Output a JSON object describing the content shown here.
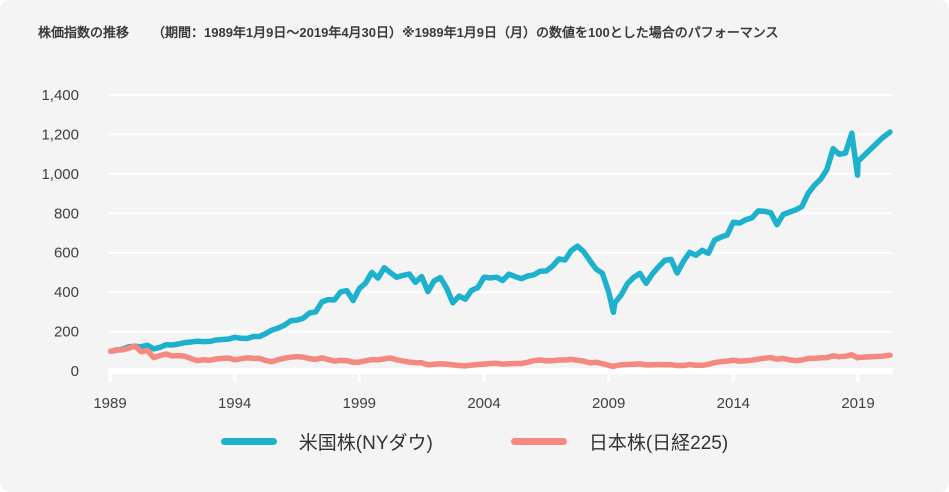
{
  "title": {
    "main": "株価指数の推移",
    "sub": "（期間：1989年1月9日～2019年4月30日）※1989年1月9日（月）の数値を100とした場合のパフォーマンス"
  },
  "colors": {
    "background": "#f5f4f4",
    "grid": "#ffffff",
    "axis_text": "#404040",
    "title_text": "#3a3a3a",
    "us_line": "#1db1cd",
    "jp_line": "#f5897f"
  },
  "chart_data": {
    "type": "line",
    "title": "株価指数の推移",
    "xlabel": "",
    "ylabel": "",
    "xlim": [
      1989,
      2019.33
    ],
    "ylim": [
      0,
      1400
    ],
    "grid": "horizontal",
    "legend_position": "bottom",
    "x_ticks": [
      1989,
      1994,
      1999,
      2004,
      2009,
      2014,
      2019
    ],
    "x_tick_labels": [
      "1989",
      "1994",
      "1999",
      "2004",
      "2009",
      "2014",
      "2019"
    ],
    "y_ticks": [
      0,
      200,
      400,
      600,
      800,
      1000,
      1200,
      1400
    ],
    "y_tick_labels": [
      "0",
      "200",
      "400",
      "600",
      "800",
      "1,000",
      "1,200",
      "1,400"
    ],
    "base_note": "1989-01-09 = 100",
    "series": [
      {
        "name": "米国株(NYダウ)",
        "color": "#1db1cd",
        "points": [
          [
            1989.03,
            100
          ],
          [
            1989.25,
            105
          ],
          [
            1989.5,
            111
          ],
          [
            1989.75,
            123
          ],
          [
            1990,
            125
          ],
          [
            1990.25,
            123
          ],
          [
            1990.5,
            131
          ],
          [
            1990.75,
            112
          ],
          [
            1991,
            120
          ],
          [
            1991.25,
            133
          ],
          [
            1991.5,
            132
          ],
          [
            1991.75,
            137
          ],
          [
            1992,
            144
          ],
          [
            1992.25,
            147
          ],
          [
            1992.5,
            151
          ],
          [
            1992.75,
            149
          ],
          [
            1993,
            150
          ],
          [
            1993.25,
            157
          ],
          [
            1993.5,
            160
          ],
          [
            1993.75,
            162
          ],
          [
            1994,
            171
          ],
          [
            1994.25,
            166
          ],
          [
            1994.5,
            165
          ],
          [
            1994.75,
            175
          ],
          [
            1995,
            175
          ],
          [
            1995.25,
            190
          ],
          [
            1995.5,
            208
          ],
          [
            1995.75,
            218
          ],
          [
            1996,
            233
          ],
          [
            1996.25,
            255
          ],
          [
            1996.5,
            258
          ],
          [
            1996.75,
            268
          ],
          [
            1997,
            294
          ],
          [
            1997.25,
            300
          ],
          [
            1997.5,
            350
          ],
          [
            1997.75,
            362
          ],
          [
            1998,
            360
          ],
          [
            1998.25,
            401
          ],
          [
            1998.5,
            408
          ],
          [
            1998.75,
            357
          ],
          [
            1999,
            418
          ],
          [
            1999.25,
            446
          ],
          [
            1999.5,
            500
          ],
          [
            1999.75,
            471
          ],
          [
            2000,
            524
          ],
          [
            2000.25,
            498
          ],
          [
            2000.5,
            476
          ],
          [
            2000.75,
            485
          ],
          [
            2001,
            492
          ],
          [
            2001.25,
            450
          ],
          [
            2001.5,
            479
          ],
          [
            2001.75,
            403
          ],
          [
            2002,
            457
          ],
          [
            2002.25,
            474
          ],
          [
            2002.5,
            421
          ],
          [
            2002.75,
            346
          ],
          [
            2003,
            380
          ],
          [
            2003.25,
            364
          ],
          [
            2003.5,
            409
          ],
          [
            2003.75,
            423
          ],
          [
            2004,
            476
          ],
          [
            2004.25,
            472
          ],
          [
            2004.5,
            476
          ],
          [
            2004.75,
            459
          ],
          [
            2005,
            491
          ],
          [
            2005.25,
            479
          ],
          [
            2005.5,
            468
          ],
          [
            2005.75,
            482
          ],
          [
            2006,
            488
          ],
          [
            2006.25,
            506
          ],
          [
            2006.5,
            508
          ],
          [
            2006.75,
            532
          ],
          [
            2007,
            568
          ],
          [
            2007.25,
            563
          ],
          [
            2007.5,
            611
          ],
          [
            2007.75,
            633
          ],
          [
            2008,
            605
          ],
          [
            2008.25,
            559
          ],
          [
            2008.5,
            517
          ],
          [
            2008.75,
            495
          ],
          [
            2009,
            400
          ],
          [
            2009.19,
            298
          ],
          [
            2009.25,
            347
          ],
          [
            2009.5,
            385
          ],
          [
            2009.75,
            443
          ],
          [
            2010,
            475
          ],
          [
            2010.25,
            495
          ],
          [
            2010.5,
            445
          ],
          [
            2010.75,
            492
          ],
          [
            2011,
            528
          ],
          [
            2011.25,
            561
          ],
          [
            2011.5,
            566
          ],
          [
            2011.75,
            497
          ],
          [
            2012,
            557
          ],
          [
            2012.25,
            602
          ],
          [
            2012.5,
            587
          ],
          [
            2012.75,
            612
          ],
          [
            2013,
            597
          ],
          [
            2013.25,
            664
          ],
          [
            2013.5,
            679
          ],
          [
            2013.75,
            690
          ],
          [
            2014,
            755
          ],
          [
            2014.25,
            750
          ],
          [
            2014.5,
            767
          ],
          [
            2014.75,
            777
          ],
          [
            2015,
            812
          ],
          [
            2015.25,
            810
          ],
          [
            2015.5,
            803
          ],
          [
            2015.75,
            742
          ],
          [
            2016,
            794
          ],
          [
            2016.25,
            806
          ],
          [
            2016.5,
            817
          ],
          [
            2016.75,
            834
          ],
          [
            2017,
            901
          ],
          [
            2017.25,
            942
          ],
          [
            2017.5,
            973
          ],
          [
            2017.75,
            1021
          ],
          [
            2018,
            1127
          ],
          [
            2018.25,
            1099
          ],
          [
            2018.5,
            1106
          ],
          [
            2018.75,
            1206
          ],
          [
            2018.98,
            993
          ],
          [
            2019,
            1063
          ],
          [
            2019.25,
            1182
          ],
          [
            2019.33,
            1212
          ]
        ]
      },
      {
        "name": "日本株(日経225)",
        "color": "#f5897f",
        "points": [
          [
            1989.03,
            100
          ],
          [
            1989.25,
            107
          ],
          [
            1989.5,
            107
          ],
          [
            1989.75,
            116
          ],
          [
            1990,
            127
          ],
          [
            1990.25,
            98
          ],
          [
            1990.5,
            104
          ],
          [
            1990.75,
            68
          ],
          [
            1991,
            78
          ],
          [
            1991.25,
            86
          ],
          [
            1991.5,
            76
          ],
          [
            1991.75,
            78
          ],
          [
            1992,
            75
          ],
          [
            1992.25,
            63
          ],
          [
            1992.5,
            52
          ],
          [
            1992.75,
            57
          ],
          [
            1993,
            55
          ],
          [
            1993.25,
            61
          ],
          [
            1993.5,
            64
          ],
          [
            1993.75,
            66
          ],
          [
            1994,
            57
          ],
          [
            1994.25,
            62
          ],
          [
            1994.5,
            67
          ],
          [
            1994.75,
            64
          ],
          [
            1995,
            64
          ],
          [
            1995.25,
            53
          ],
          [
            1995.5,
            47
          ],
          [
            1995.75,
            58
          ],
          [
            1996,
            65
          ],
          [
            1996.25,
            70
          ],
          [
            1996.5,
            73
          ],
          [
            1996.75,
            70
          ],
          [
            1997,
            63
          ],
          [
            1997.25,
            59
          ],
          [
            1997.5,
            67
          ],
          [
            1997.75,
            58
          ],
          [
            1998,
            50
          ],
          [
            1998.25,
            54
          ],
          [
            1998.5,
            52
          ],
          [
            1998.75,
            44
          ],
          [
            1999,
            45
          ],
          [
            1999.25,
            52
          ],
          [
            1999.5,
            57
          ],
          [
            1999.75,
            57
          ],
          [
            2000,
            62
          ],
          [
            2000.25,
            66
          ],
          [
            2000.5,
            57
          ],
          [
            2000.75,
            51
          ],
          [
            2001,
            45
          ],
          [
            2001.25,
            42
          ],
          [
            2001.5,
            42
          ],
          [
            2001.75,
            32
          ],
          [
            2002,
            34
          ],
          [
            2002.25,
            36
          ],
          [
            2002.5,
            35
          ],
          [
            2002.75,
            31
          ],
          [
            2003,
            28
          ],
          [
            2003.25,
            26
          ],
          [
            2003.5,
            30
          ],
          [
            2003.75,
            33
          ],
          [
            2004,
            35
          ],
          [
            2004.25,
            38
          ],
          [
            2004.5,
            39
          ],
          [
            2004.75,
            35
          ],
          [
            2005,
            37
          ],
          [
            2005.25,
            38
          ],
          [
            2005.5,
            38
          ],
          [
            2005.75,
            44
          ],
          [
            2006,
            53
          ],
          [
            2006.25,
            56
          ],
          [
            2006.5,
            51
          ],
          [
            2006.75,
            53
          ],
          [
            2007,
            56
          ],
          [
            2007.25,
            56
          ],
          [
            2007.5,
            59
          ],
          [
            2007.75,
            55
          ],
          [
            2008,
            50
          ],
          [
            2008.25,
            41
          ],
          [
            2008.5,
            44
          ],
          [
            2008.75,
            37
          ],
          [
            2009,
            29
          ],
          [
            2009.19,
            23
          ],
          [
            2009.25,
            26
          ],
          [
            2009.5,
            32
          ],
          [
            2009.75,
            33
          ],
          [
            2010,
            34
          ],
          [
            2010.25,
            36
          ],
          [
            2010.5,
            31
          ],
          [
            2010.75,
            31
          ],
          [
            2011,
            33
          ],
          [
            2011.25,
            32
          ],
          [
            2011.5,
            32
          ],
          [
            2011.75,
            28
          ],
          [
            2012,
            28
          ],
          [
            2012.25,
            33
          ],
          [
            2012.5,
            29
          ],
          [
            2012.75,
            29
          ],
          [
            2013,
            34
          ],
          [
            2013.25,
            42
          ],
          [
            2013.5,
            47
          ],
          [
            2013.75,
            50
          ],
          [
            2014,
            55
          ],
          [
            2014.25,
            50
          ],
          [
            2014.5,
            52
          ],
          [
            2014.75,
            55
          ],
          [
            2015,
            60
          ],
          [
            2015.25,
            65
          ],
          [
            2015.5,
            68
          ],
          [
            2015.75,
            60
          ],
          [
            2016,
            64
          ],
          [
            2016.25,
            57
          ],
          [
            2016.5,
            53
          ],
          [
            2016.75,
            56
          ],
          [
            2017,
            64
          ],
          [
            2017.25,
            64
          ],
          [
            2017.5,
            67
          ],
          [
            2017.75,
            68
          ],
          [
            2018,
            77
          ],
          [
            2018.25,
            72
          ],
          [
            2018.5,
            75
          ],
          [
            2018.75,
            82
          ],
          [
            2018.98,
            67
          ],
          [
            2019,
            69
          ],
          [
            2019.25,
            75
          ],
          [
            2019.33,
            80
          ]
        ]
      }
    ]
  },
  "legend": {
    "items": [
      {
        "label": "米国株(NYダウ)"
      },
      {
        "label": "日本株(日経225)"
      }
    ]
  }
}
